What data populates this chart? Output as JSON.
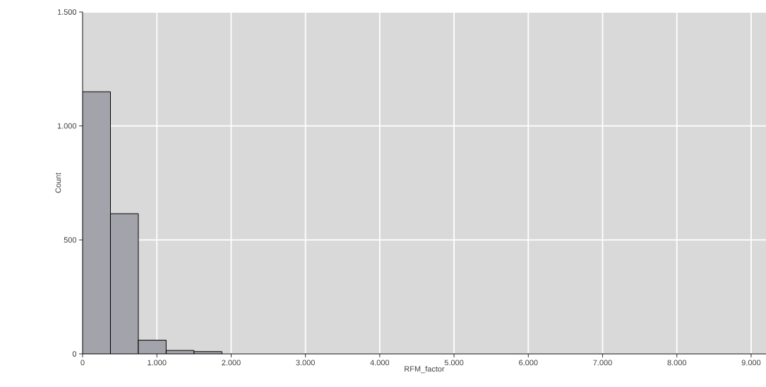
{
  "chart_data": {
    "type": "histogram",
    "xlabel": "RFM_factor",
    "ylabel": "Count",
    "bins": [
      0,
      375,
      750,
      1125,
      1500,
      1875
    ],
    "values": [
      1150,
      615,
      60,
      15,
      10
    ],
    "color": "#a3a3ab",
    "xlim": [
      0,
      9200
    ],
    "ylim": [
      0,
      1500
    ],
    "xticks": [
      0,
      {
        "value": 1000,
        "label": "1.000"
      },
      {
        "value": 2000,
        "label": "2.000"
      },
      {
        "value": 3000,
        "label": "3.000"
      },
      {
        "value": 4000,
        "label": "4.000"
      },
      {
        "value": 5000,
        "label": "5.000"
      },
      {
        "value": 6000,
        "label": "6.000"
      },
      {
        "value": 7000,
        "label": "7.000"
      },
      {
        "value": 8000,
        "label": "8.000"
      },
      {
        "value": 9000,
        "label": "9.000"
      }
    ],
    "yticks": [
      0,
      500,
      {
        "value": 1000,
        "label": "1.000"
      },
      {
        "value": 1500,
        "label": "1.500"
      }
    ],
    "grid": true
  }
}
